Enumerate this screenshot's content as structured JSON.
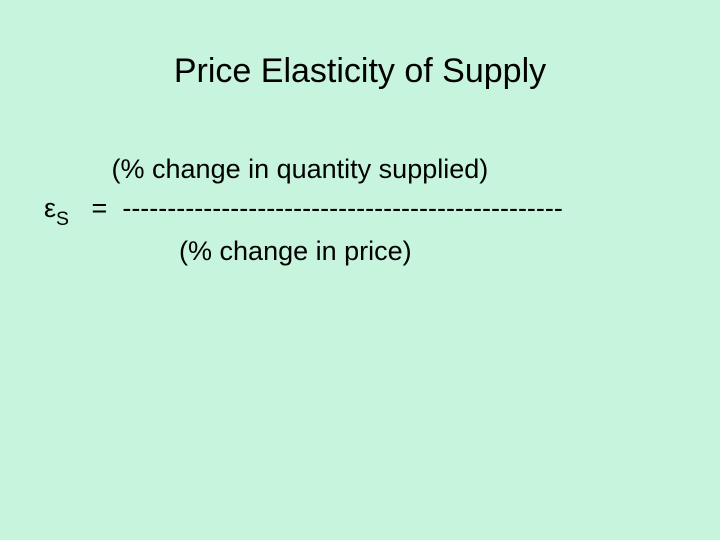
{
  "slide": {
    "background_color": "#c6f4dd",
    "text_color": "#000000",
    "title": "Price Elasticity of Supply",
    "title_fontsize": 34,
    "body_fontsize": 27,
    "font_family": "Arial, Helvetica, sans-serif",
    "formula": {
      "symbol_epsilon": "ε",
      "symbol_subscript": "S",
      "equals": "=",
      "numerator": "(% change in quantity supplied)",
      "divider": "-------------------------------------------------",
      "denominator": "(% change in price)",
      "line1_leading_spaces": "         ",
      "line2_prefix_spaces": "    ",
      "line2_sep_spaces": "   ",
      "line2_after_eq_spaces": "  ",
      "line3_leading_spaces": "                  "
    }
  }
}
